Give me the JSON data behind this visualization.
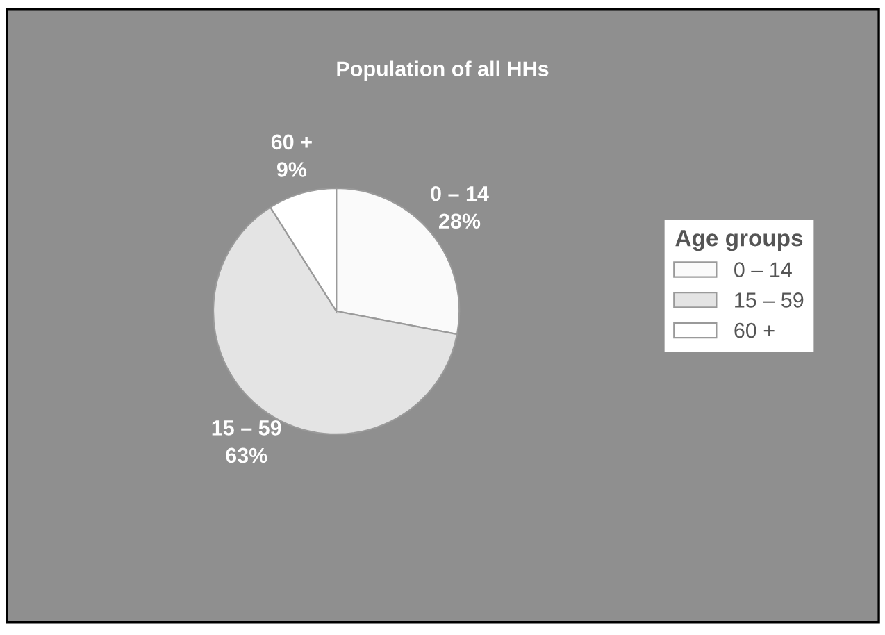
{
  "chart_data": {
    "type": "pie",
    "title": "Population of all HHs",
    "legend_title": "Age groups",
    "legend": "right",
    "categories": [
      "0 – 14",
      "15 – 59",
      "60 +"
    ],
    "values": [
      28,
      63,
      9
    ],
    "value_labels": [
      "28%",
      "63%",
      "9%"
    ],
    "colors": [
      "#fafafa",
      "#e4e4e4",
      "#ffffff"
    ]
  }
}
